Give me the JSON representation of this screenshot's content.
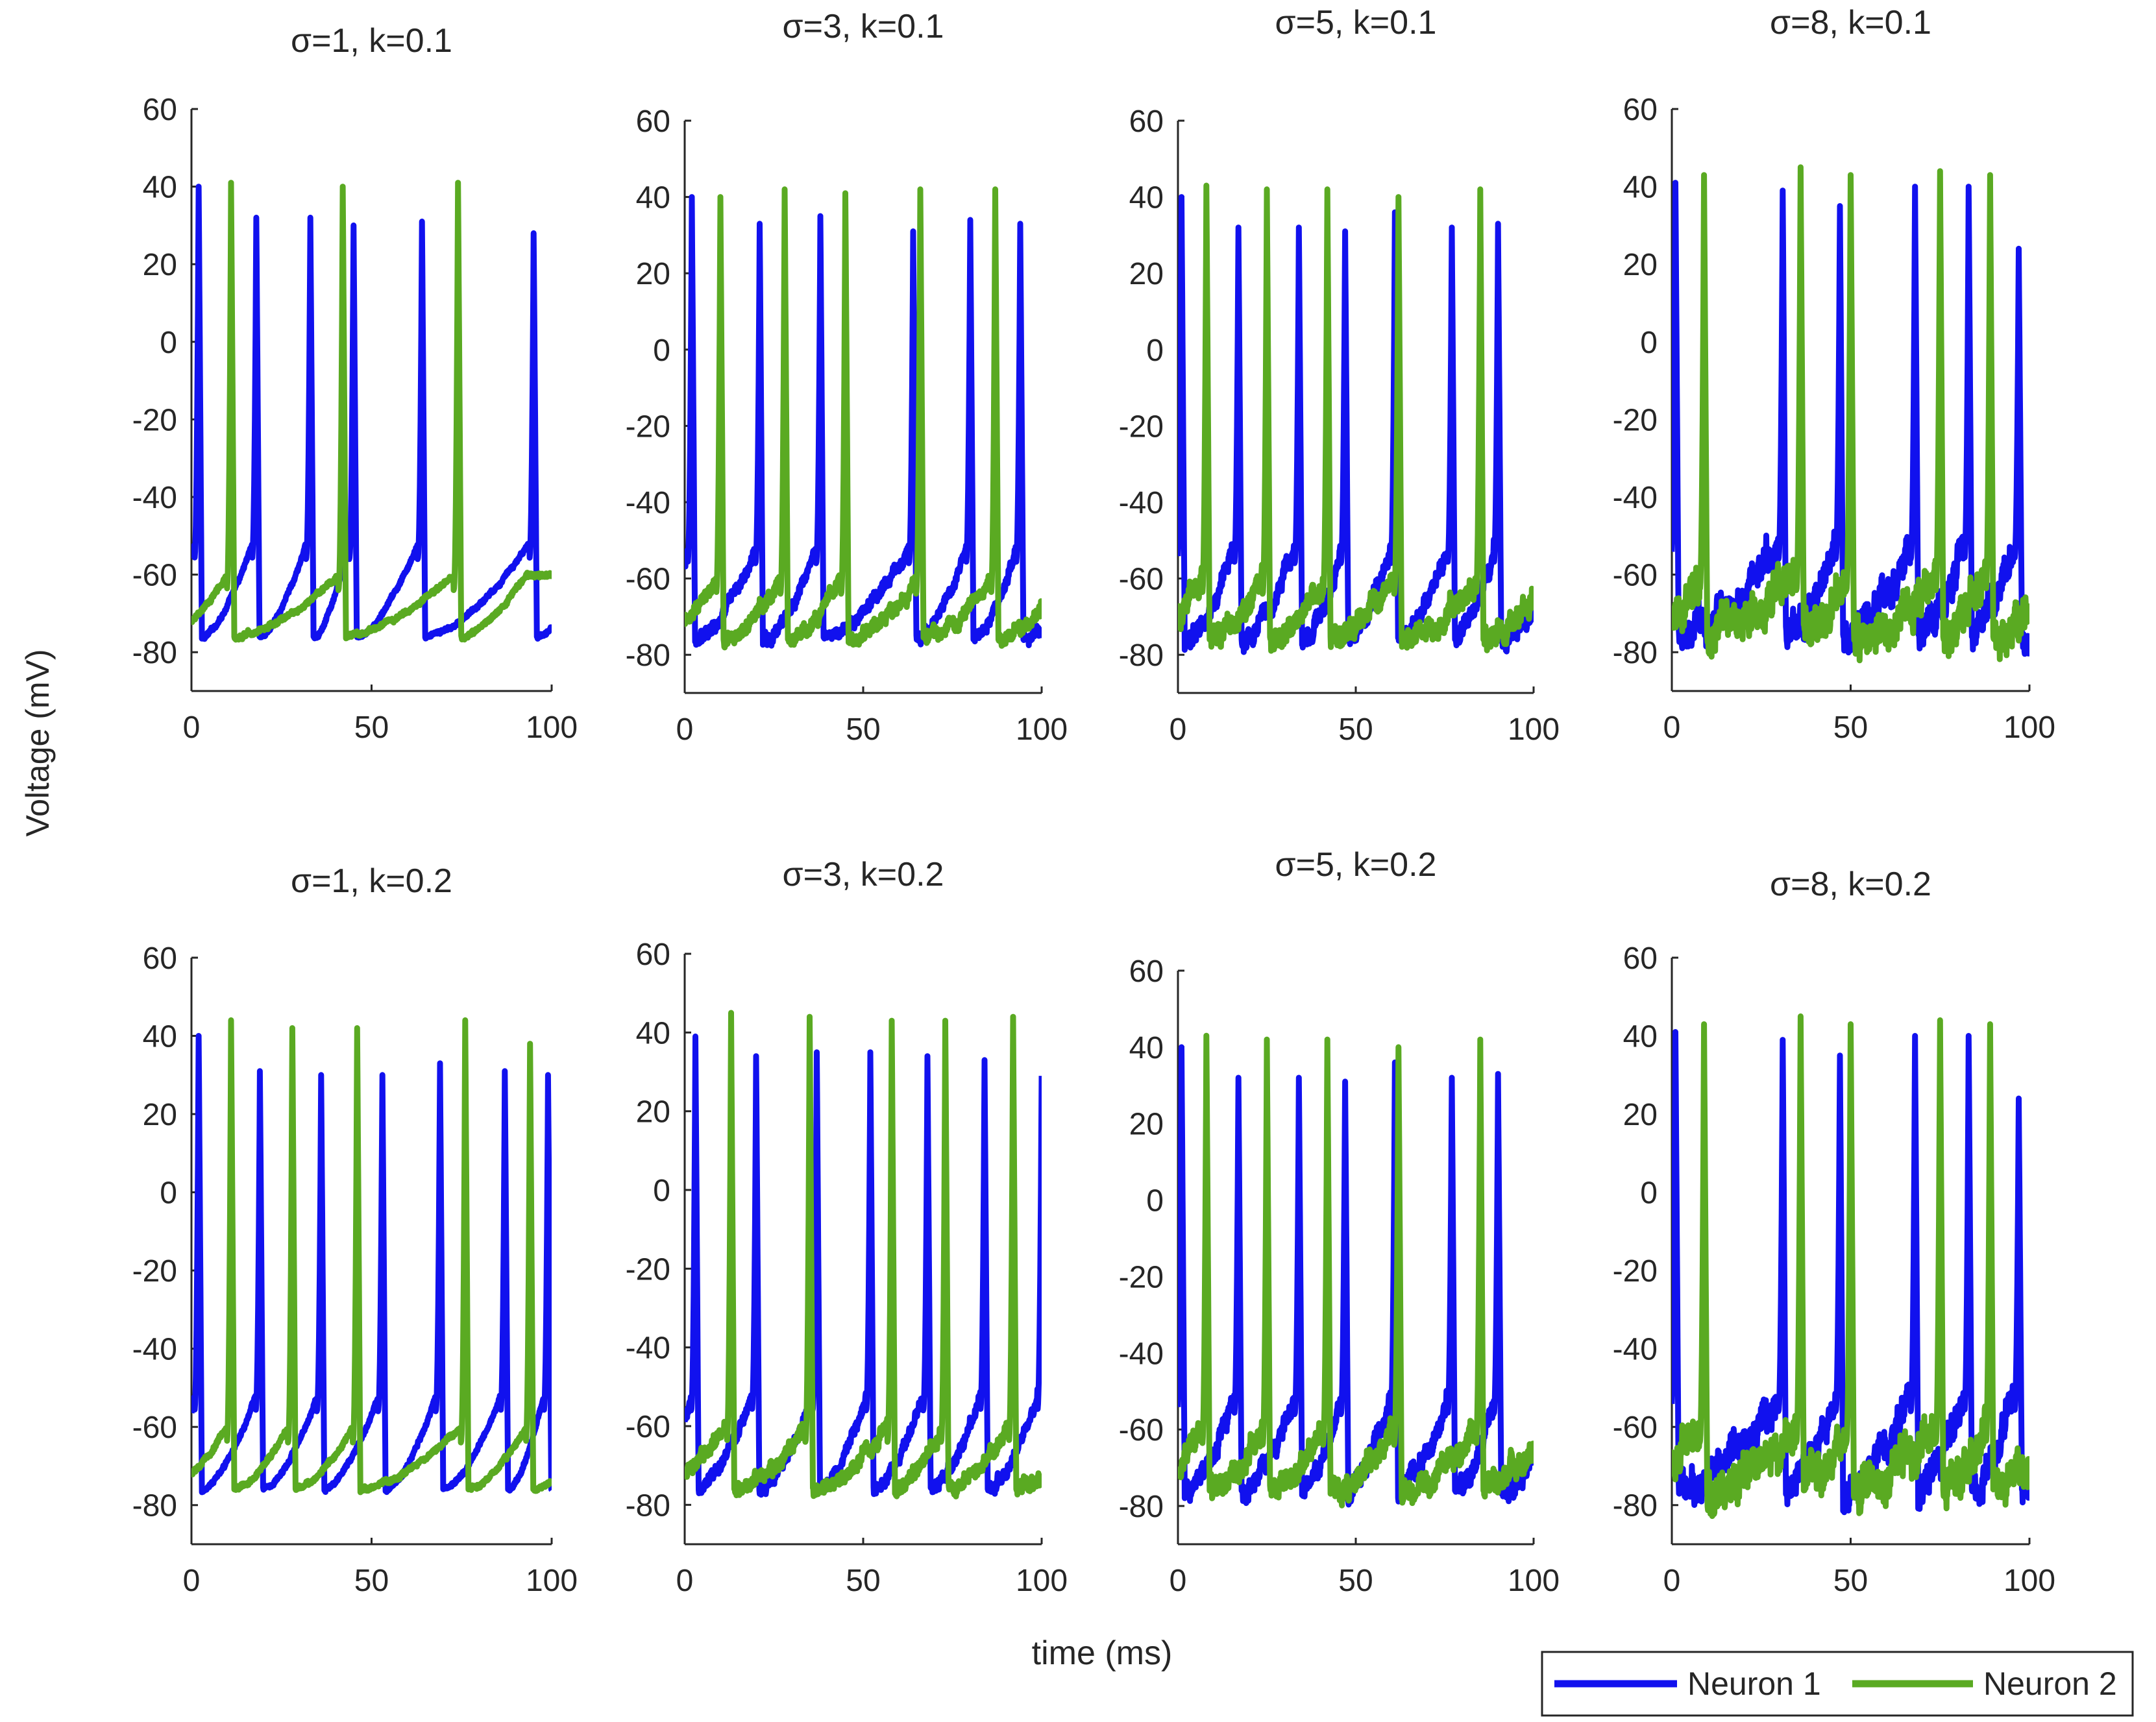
{
  "figure": {
    "ylabel": "Voltage (mV)",
    "xlabel": "time (ms)",
    "colors": {
      "neuron1": "#1111ee",
      "neuron2": "#5aaa22",
      "axis": "#262626"
    },
    "legend": [
      {
        "label": "Neuron 1",
        "color": "#1111ee"
      },
      {
        "label": "Neuron 2",
        "color": "#5aaa22"
      }
    ]
  },
  "chart_data": [
    {
      "type": "line",
      "title": "σ=1, k=0.1",
      "xlim": [
        0,
        100
      ],
      "ylim": [
        -90,
        60
      ],
      "xticks": [
        0,
        50,
        100
      ],
      "yticks": [
        -80,
        -60,
        -40,
        -20,
        0,
        20,
        40,
        60
      ],
      "noise": 1,
      "series": [
        {
          "name": "Neuron 1",
          "spikes": [
            [
              2,
              40
            ],
            [
              18,
              32
            ],
            [
              33,
              32
            ],
            [
              45,
              30
            ],
            [
              64,
              31
            ],
            [
              95,
              28
            ]
          ]
        },
        {
          "name": "Neuron 2",
          "spikes": [
            [
              11,
              41
            ],
            [
              42,
              40
            ],
            [
              74,
              41
            ]
          ]
        }
      ]
    },
    {
      "type": "line",
      "title": "σ=3, k=0.1",
      "xlim": [
        0,
        100
      ],
      "ylim": [
        -90,
        60
      ],
      "xticks": [
        0,
        50,
        100
      ],
      "yticks": [
        -80,
        -60,
        -40,
        -20,
        0,
        20,
        40,
        60
      ],
      "noise": 3,
      "series": [
        {
          "name": "Neuron 1",
          "spikes": [
            [
              2,
              40
            ],
            [
              21,
              33
            ],
            [
              38,
              35
            ],
            [
              64,
              31
            ],
            [
              80,
              34
            ],
            [
              94,
              33
            ]
          ]
        },
        {
          "name": "Neuron 2",
          "spikes": [
            [
              10,
              40
            ],
            [
              28,
              42
            ],
            [
              45,
              41
            ],
            [
              66,
              42
            ],
            [
              87,
              42
            ]
          ]
        }
      ]
    },
    {
      "type": "line",
      "title": "σ=5, k=0.1",
      "xlim": [
        0,
        100
      ],
      "ylim": [
        -90,
        60
      ],
      "xticks": [
        0,
        50,
        100
      ],
      "yticks": [
        -80,
        -60,
        -40,
        -20,
        0,
        20,
        40,
        60
      ],
      "noise": 5,
      "series": [
        {
          "name": "Neuron 1",
          "spikes": [
            [
              1,
              40
            ],
            [
              17,
              32
            ],
            [
              34,
              32
            ],
            [
              47,
              31
            ],
            [
              61,
              36
            ],
            [
              77,
              32
            ],
            [
              90,
              33
            ]
          ]
        },
        {
          "name": "Neuron 2",
          "spikes": [
            [
              8,
              43
            ],
            [
              25,
              42
            ],
            [
              42,
              42
            ],
            [
              62,
              40
            ],
            [
              85,
              42
            ]
          ]
        }
      ]
    },
    {
      "type": "line",
      "title": "σ=8, k=0.1",
      "xlim": [
        0,
        100
      ],
      "ylim": [
        -90,
        60
      ],
      "xticks": [
        0,
        50,
        100
      ],
      "yticks": [
        -80,
        -60,
        -40,
        -20,
        0,
        20,
        40,
        60
      ],
      "noise": 8,
      "series": [
        {
          "name": "Neuron 1",
          "spikes": [
            [
              1,
              41
            ],
            [
              31,
              39
            ],
            [
              47,
              35
            ],
            [
              68,
              40
            ],
            [
              83,
              40
            ],
            [
              97,
              24
            ]
          ]
        },
        {
          "name": "Neuron 2",
          "spikes": [
            [
              9,
              43
            ],
            [
              36,
              45
            ],
            [
              50,
              43
            ],
            [
              75,
              44
            ],
            [
              89,
              43
            ]
          ]
        }
      ]
    },
    {
      "type": "line",
      "title": "σ=1, k=0.2",
      "xlim": [
        0,
        100
      ],
      "ylim": [
        -90,
        60
      ],
      "xticks": [
        0,
        50,
        100
      ],
      "yticks": [
        -80,
        -60,
        -40,
        -20,
        0,
        20,
        40,
        60
      ],
      "noise": 1,
      "series": [
        {
          "name": "Neuron 1",
          "spikes": [
            [
              2,
              40
            ],
            [
              19,
              31
            ],
            [
              36,
              30
            ],
            [
              53,
              30
            ],
            [
              69,
              33
            ],
            [
              87,
              31
            ],
            [
              99,
              30
            ]
          ]
        },
        {
          "name": "Neuron 2",
          "spikes": [
            [
              11,
              44
            ],
            [
              28,
              42
            ],
            [
              46,
              42
            ],
            [
              76,
              44
            ],
            [
              94,
              38
            ]
          ]
        }
      ]
    },
    {
      "type": "line",
      "title": "σ=3, k=0.2",
      "xlim": [
        0,
        100
      ],
      "ylim": [
        -90,
        60
      ],
      "xticks": [
        0,
        50,
        100
      ],
      "yticks": [
        -80,
        -60,
        -40,
        -20,
        0,
        20,
        40,
        60
      ],
      "noise": 3,
      "series": [
        {
          "name": "Neuron 1",
          "spikes": [
            [
              3,
              39
            ],
            [
              20,
              34
            ],
            [
              37,
              35
            ],
            [
              52,
              35
            ],
            [
              68,
              34
            ],
            [
              84,
              33
            ],
            [
              100,
              29
            ]
          ]
        },
        {
          "name": "Neuron 2",
          "spikes": [
            [
              13,
              45
            ],
            [
              35,
              44
            ],
            [
              58,
              43
            ],
            [
              73,
              43
            ],
            [
              92,
              44
            ]
          ]
        }
      ]
    },
    {
      "type": "line",
      "title": "σ=5, k=0.2",
      "xlim": [
        0,
        100
      ],
      "ylim": [
        -90,
        60
      ],
      "xticks": [
        0,
        50,
        100
      ],
      "yticks": [
        -80,
        -60,
        -40,
        -20,
        0,
        20,
        40,
        60
      ],
      "noise": 5,
      "series": [
        {
          "name": "Neuron 1",
          "spikes": [
            [
              1,
              40
            ],
            [
              17,
              32
            ],
            [
              34,
              32
            ],
            [
              47,
              31
            ],
            [
              61,
              36
            ],
            [
              77,
              32
            ],
            [
              90,
              33
            ]
          ]
        },
        {
          "name": "Neuron 2",
          "spikes": [
            [
              8,
              43
            ],
            [
              25,
              42
            ],
            [
              42,
              42
            ],
            [
              62,
              40
            ],
            [
              85,
              42
            ]
          ]
        }
      ]
    },
    {
      "type": "line",
      "title": "σ=8, k=0.2",
      "xlim": [
        0,
        100
      ],
      "ylim": [
        -90,
        60
      ],
      "xticks": [
        0,
        50,
        100
      ],
      "yticks": [
        -80,
        -60,
        -40,
        -20,
        0,
        20,
        40,
        60
      ],
      "noise": 8,
      "series": [
        {
          "name": "Neuron 1",
          "spikes": [
            [
              1,
              41
            ],
            [
              31,
              39
            ],
            [
              47,
              35
            ],
            [
              68,
              40
            ],
            [
              83,
              40
            ],
            [
              97,
              24
            ]
          ]
        },
        {
          "name": "Neuron 2",
          "spikes": [
            [
              9,
              43
            ],
            [
              36,
              45
            ],
            [
              50,
              43
            ],
            [
              75,
              44
            ],
            [
              89,
              43
            ]
          ]
        }
      ]
    }
  ]
}
